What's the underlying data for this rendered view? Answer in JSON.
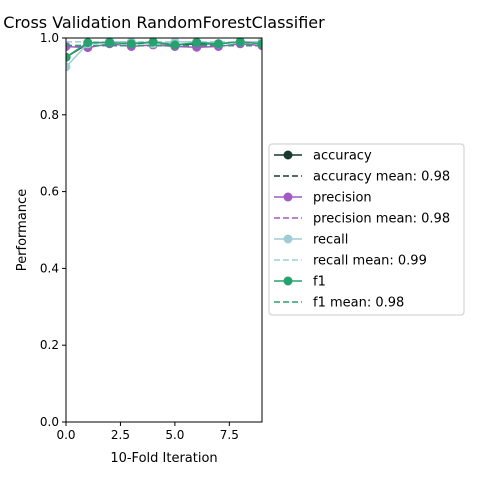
{
  "chart_data": {
    "type": "line",
    "title": "Cross Validation RandomForestClassifier",
    "xlabel": "10-Fold Iteration",
    "ylabel": "Performance",
    "xlim": [
      0,
      9
    ],
    "ylim": [
      0,
      1
    ],
    "x_ticks": [
      0,
      2.5,
      5,
      7.5
    ],
    "x_tick_labels": [
      "0.0",
      "2.5",
      "5.0",
      "7.5"
    ],
    "y_ticks": [
      0,
      0.2,
      0.4,
      0.6,
      0.8,
      1.0
    ],
    "y_tick_labels": [
      "0.0",
      "0.2",
      "0.4",
      "0.6",
      "0.8",
      "1.0"
    ],
    "grid": false,
    "legend_position": "right-outside",
    "x": [
      0,
      1,
      2,
      3,
      4,
      5,
      6,
      7,
      8,
      9
    ],
    "series": [
      {
        "name": "accuracy",
        "color": "#1b3a2f",
        "values": [
          0.95,
          0.985,
          0.99,
          0.985,
          0.988,
          0.982,
          0.985,
          0.985,
          0.99,
          0.985
        ],
        "mean": 0.98,
        "mean_label": "accuracy mean: 0.98"
      },
      {
        "name": "precision",
        "color": "#a05cc0",
        "values": [
          0.978,
          0.975,
          0.985,
          0.978,
          0.982,
          0.978,
          0.976,
          0.978,
          0.985,
          0.98
        ],
        "mean": 0.98,
        "mean_label": "precision mean: 0.98"
      },
      {
        "name": "recall",
        "color": "#9fcdd4",
        "values": [
          0.925,
          0.985,
          0.99,
          0.99,
          0.985,
          0.99,
          0.99,
          0.985,
          0.99,
          0.99
        ],
        "mean": 0.99,
        "mean_label": "recall mean: 0.99"
      },
      {
        "name": "f1",
        "color": "#26a26e",
        "values": [
          0.95,
          0.988,
          0.988,
          0.985,
          0.99,
          0.982,
          0.988,
          0.985,
          0.99,
          0.985
        ],
        "mean": 0.98,
        "mean_label": "f1 mean: 0.98"
      }
    ]
  }
}
